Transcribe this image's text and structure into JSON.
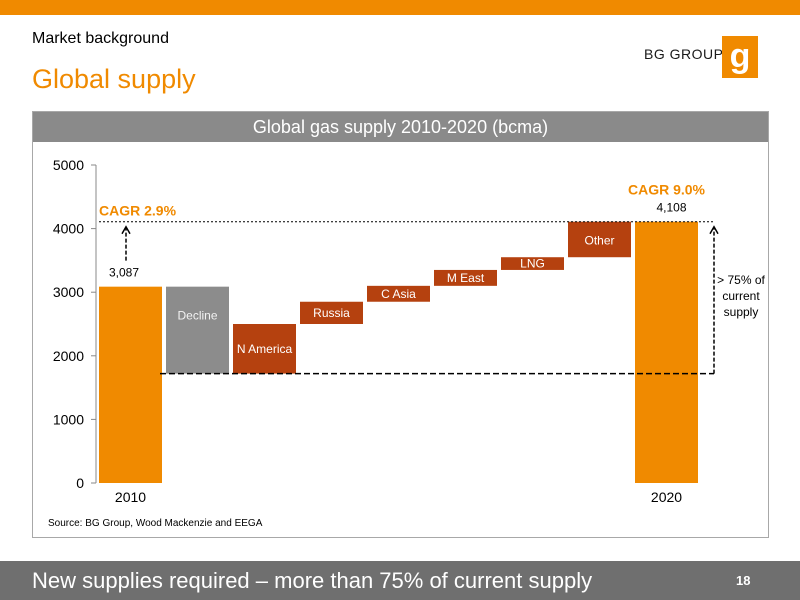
{
  "header": {
    "section": "Market background",
    "title": "Global supply",
    "logo_text": "BG GROUP",
    "logo_mark": "g"
  },
  "colors": {
    "orange": "#f08a00",
    "gray_bar": "#8c8c8c",
    "red_brown": "#b5410f",
    "panel_header": "#8a8a8a",
    "footer": "#6f6f6f"
  },
  "chart_data": {
    "type": "bar",
    "subtype": "waterfall",
    "title": "Global gas supply 2010-2020 (bcma)",
    "ylim": [
      0,
      5000
    ],
    "yticks": [
      "0",
      "1000",
      "2000",
      "3000",
      "4000",
      "5000"
    ],
    "categories": [
      "2010",
      "Decline",
      "N America",
      "Russia",
      "C Asia",
      "M East",
      "LNG",
      "Other",
      "2020"
    ],
    "category_labels": [
      "2010",
      "",
      "",
      "",
      "",
      "",
      "",
      "",
      "2020"
    ],
    "bars": [
      {
        "label": "2010",
        "base": 0,
        "top": 3087,
        "kind": "total",
        "value_label": "3,087"
      },
      {
        "label": "Decline",
        "base": 1720,
        "top": 3087,
        "kind": "decline",
        "value_label": ""
      },
      {
        "label": "N America",
        "base": 1720,
        "top": 2500,
        "kind": "increase",
        "value_label": ""
      },
      {
        "label": "Russia",
        "base": 2500,
        "top": 2850,
        "kind": "increase",
        "value_label": ""
      },
      {
        "label": "C Asia",
        "base": 2850,
        "top": 3100,
        "kind": "increase",
        "value_label": ""
      },
      {
        "label": "M East",
        "base": 3100,
        "top": 3350,
        "kind": "increase",
        "value_label": ""
      },
      {
        "label": "LNG",
        "base": 3350,
        "top": 3550,
        "kind": "increase",
        "value_label": ""
      },
      {
        "label": "Other",
        "base": 3550,
        "top": 4108,
        "kind": "increase",
        "value_label": ""
      },
      {
        "label": "2020",
        "base": 0,
        "top": 4108,
        "kind": "total",
        "value_label": "4,108"
      }
    ],
    "annotations": {
      "cagr_left": "CAGR 2.9%",
      "cagr_right": "CAGR 9.0%",
      "bracket_text_1": "> 75% of",
      "bracket_text_2": "current",
      "bracket_text_3": "supply",
      "dotted_line_value": 4108,
      "dashed_line_value": 1720
    },
    "grid": false
  },
  "source": "Source: BG Group, Wood Mackenzie and EEGA",
  "footer": {
    "text": "New supplies required – more than 75% of current supply",
    "page": "18"
  }
}
